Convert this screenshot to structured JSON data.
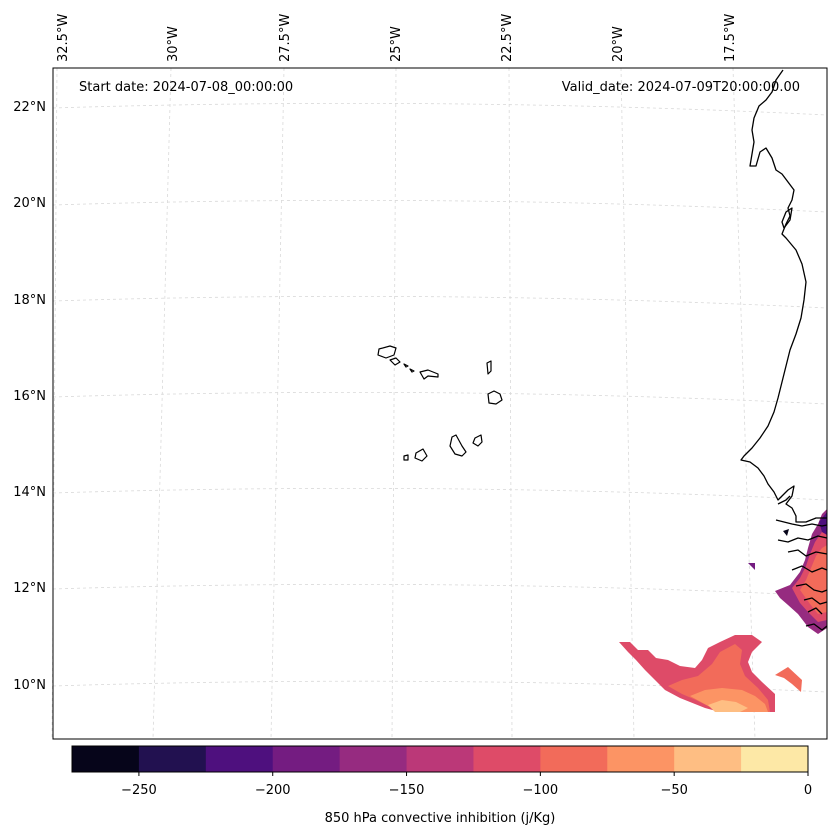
{
  "map": {
    "start_date": "Start date: 2024-07-08_00:00:00",
    "valid_date": "Valid_date: 2024-07-09T20:00:00.00",
    "lon_labels": [
      "32.5°W",
      "30°W",
      "27.5°W",
      "25°W",
      "22.5°W",
      "20°W",
      "17.5°W"
    ],
    "lat_labels": [
      "22°N",
      "20°N",
      "18°N",
      "16°N",
      "14°N",
      "12°N",
      "10°N"
    ],
    "features": [
      "Cabo Verde islands",
      "West African coastline"
    ]
  },
  "colorbar": {
    "label": "850 hPa convective inhibition (j/Kg)",
    "tick_labels": [
      "−250",
      "−200",
      "−150",
      "−100",
      "−50",
      "0"
    ],
    "tick_values": [
      -250,
      -200,
      -150,
      -100,
      -50,
      0
    ],
    "range": [
      -275,
      0
    ],
    "levels": [
      -275,
      -250,
      -225,
      -200,
      -175,
      -150,
      -125,
      -100,
      -75,
      -50,
      -25,
      0
    ],
    "colors": [
      "#06051a",
      "#221150",
      "#4e107e",
      "#741c81",
      "#962b80",
      "#bb3878",
      "#de4b68",
      "#f26b5a",
      "#fc9464",
      "#febe83",
      "#fde8a6"
    ]
  }
}
